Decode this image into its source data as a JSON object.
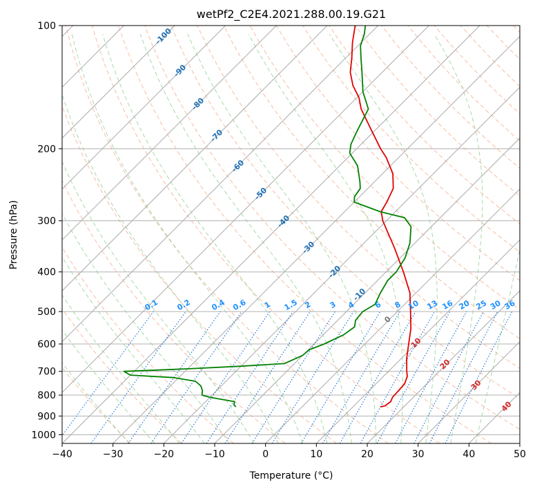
{
  "chart_data": {
    "type": "line",
    "title": "wetPf2_C2E4.2021.288.00.19.G21",
    "xlabel": "Temperature (°C)",
    "ylabel": "Pressure (hPa)",
    "xlim": [
      -40,
      50
    ],
    "ylim": [
      1050,
      100
    ],
    "y_scale": "log",
    "x_ticks": [
      -40,
      -30,
      -20,
      -10,
      0,
      10,
      20,
      30,
      40,
      50
    ],
    "x_tick_labels": [
      "−40",
      "−30",
      "−20",
      "−10",
      "0",
      "10",
      "20",
      "30",
      "40",
      "50"
    ],
    "y_ticks": [
      1000,
      900,
      800,
      700,
      600,
      500,
      400,
      300,
      200,
      100
    ],
    "y_tick_labels": [
      "1000",
      "900",
      "800",
      "700",
      "600",
      "500",
      "400",
      "300",
      "200",
      "100"
    ],
    "grid": true,
    "skew_degrees": 45,
    "colors": {
      "temperature": "#e00000",
      "dewpoint": "#008000",
      "isotherm": "#aaaaaa",
      "isobar": "#b0b0b0",
      "dry_adiabat": "#f4a582",
      "moist_adiabat": "#91cf91",
      "mixing_ratio": "#1f77d4",
      "dry_label": "#d62728",
      "mixing_label": "#1e90ff",
      "temp_label": "#1f6fb4"
    },
    "series": [
      {
        "key": "temperature",
        "points": [
          [
            855,
            15.4
          ],
          [
            850,
            16.1
          ],
          [
            830,
            16.4
          ],
          [
            810,
            15.9
          ],
          [
            780,
            15.8
          ],
          [
            750,
            15.6
          ],
          [
            720,
            14.7
          ],
          [
            700,
            13.6
          ],
          [
            650,
            11.0
          ],
          [
            600,
            8.6
          ],
          [
            550,
            6.0
          ],
          [
            500,
            2.6
          ],
          [
            450,
            -1.2
          ],
          [
            400,
            -6.6
          ],
          [
            350,
            -13.0
          ],
          [
            300,
            -20.7
          ],
          [
            285,
            -22.8
          ],
          [
            270,
            -23.6
          ],
          [
            250,
            -25.0
          ],
          [
            230,
            -28.0
          ],
          [
            210,
            -32.5
          ],
          [
            200,
            -35.3
          ],
          [
            180,
            -40.8
          ],
          [
            160,
            -46.9
          ],
          [
            150,
            -49.6
          ],
          [
            140,
            -53.2
          ],
          [
            130,
            -56.3
          ],
          [
            120,
            -58.8
          ],
          [
            110,
            -61.7
          ],
          [
            100,
            -64.5
          ]
        ]
      },
      {
        "key": "dewpoint",
        "points": [
          [
            855,
            -13.0
          ],
          [
            845,
            -13.8
          ],
          [
            830,
            -14.3
          ],
          [
            810,
            -20.0
          ],
          [
            800,
            -22.0
          ],
          [
            780,
            -22.8
          ],
          [
            760,
            -24.0
          ],
          [
            740,
            -26.0
          ],
          [
            725,
            -31.0
          ],
          [
            715,
            -40.0
          ],
          [
            700,
            -42.0
          ],
          [
            690,
            -30.0
          ],
          [
            680,
            -20.0
          ],
          [
            670,
            -12.0
          ],
          [
            640,
            -10.0
          ],
          [
            620,
            -9.8
          ],
          [
            600,
            -8.0
          ],
          [
            570,
            -6.0
          ],
          [
            545,
            -5.4
          ],
          [
            525,
            -6.5
          ],
          [
            500,
            -6.8
          ],
          [
            480,
            -5.8
          ],
          [
            450,
            -7.0
          ],
          [
            420,
            -8.0
          ],
          [
            400,
            -8.0
          ],
          [
            370,
            -9.0
          ],
          [
            340,
            -11.0
          ],
          [
            310,
            -14.0
          ],
          [
            295,
            -17.0
          ],
          [
            285,
            -23.0
          ],
          [
            270,
            -30.0
          ],
          [
            262,
            -31.0
          ],
          [
            250,
            -31.5
          ],
          [
            240,
            -33.0
          ],
          [
            220,
            -36.5
          ],
          [
            205,
            -40.5
          ],
          [
            195,
            -42.0
          ],
          [
            180,
            -43.5
          ],
          [
            160,
            -45.5
          ],
          [
            145,
            -50.0
          ],
          [
            130,
            -54.0
          ],
          [
            120,
            -57.0
          ],
          [
            112,
            -59.5
          ],
          [
            105,
            -61.0
          ],
          [
            100,
            -62.5
          ]
        ]
      }
    ],
    "dry_adiabat_labels": [
      "10",
      "20",
      "30",
      "40"
    ],
    "mixing_ratio_labels": [
      "0.1",
      "0.2",
      "0.4",
      "0.6",
      "1",
      "1.5",
      "2",
      "3",
      "4",
      "6",
      "8",
      "10",
      "13",
      "16",
      "20",
      "25",
      "30",
      "36"
    ],
    "mixing_ratio_values": [
      0.1,
      0.2,
      0.4,
      0.6,
      1,
      1.5,
      2,
      3,
      4,
      6,
      8,
      10,
      13,
      16,
      20,
      25,
      30,
      36
    ],
    "wetbulb_label": "0",
    "temperature_line_labels": [
      "-100",
      "-90",
      "-80",
      "-70",
      "-60",
      "-50",
      "-40",
      "-30",
      "-20",
      "-10"
    ]
  }
}
